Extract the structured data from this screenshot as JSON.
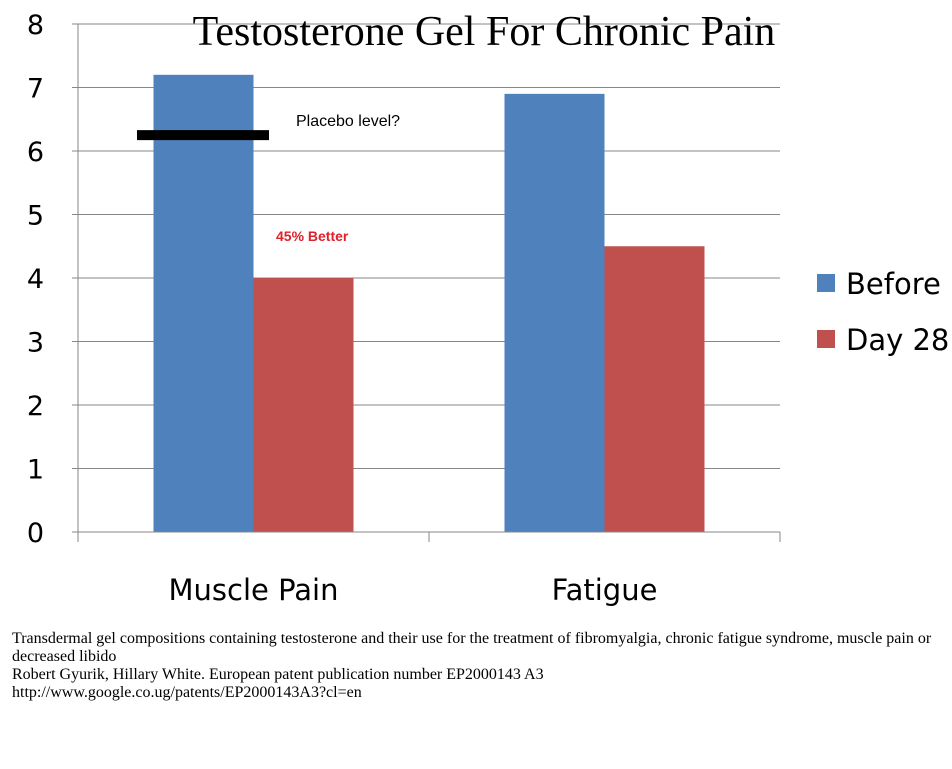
{
  "chart_data": {
    "type": "bar",
    "title": "Testosterone Gel For Chronic Pain",
    "categories": [
      "Muscle Pain",
      "Fatigue"
    ],
    "series": [
      {
        "name": "Before",
        "values": [
          7.2,
          6.9
        ],
        "color": "#4f81bd"
      },
      {
        "name": "Day 28",
        "values": [
          4.0,
          4.5
        ],
        "color": "#c0504d"
      }
    ],
    "ylim": [
      0,
      8
    ],
    "yticks": [
      "0",
      "1",
      "2",
      "3",
      "4",
      "5",
      "6",
      "7",
      "8"
    ],
    "grid": true,
    "legend": "right",
    "annotations": {
      "placebo_label": "Placebo level?",
      "placebo_value": 6.25,
      "better_label": "45% Better",
      "better_color": "#e0202a"
    }
  },
  "caption": {
    "line1": "Transdermal gel compositions containing testosterone and their use for the treatment of fibromyalgia, chronic fatigue syndrome, muscle pain or decreased libido",
    "line2": "Robert Gyurik, Hillary White. European patent publication number EP2000143 A3",
    "line3": "http://www.google.co.ug/patents/EP2000143A3?cl=en"
  }
}
